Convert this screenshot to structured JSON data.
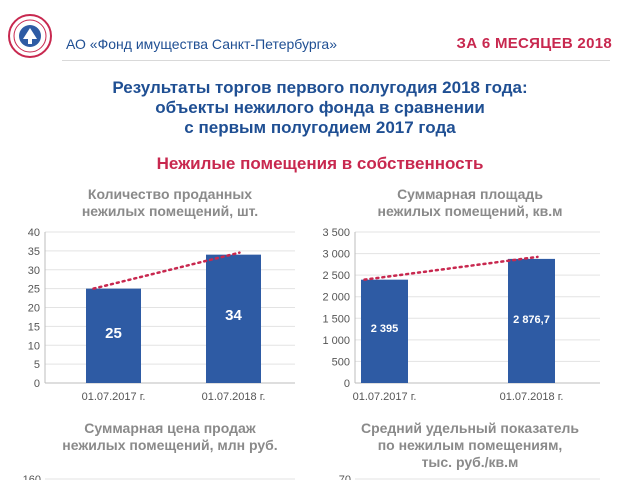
{
  "header": {
    "org_name": "АО «Фонд имущества Санкт-Петербурга»",
    "period": "ЗА 6 МЕСЯЦЕВ 2018"
  },
  "title_lines": [
    "Результаты торгов первого полугодия 2018 года:",
    "объекты нежилого фонда в сравнении",
    "с первым полугодием 2017 года"
  ],
  "subtitle": "Нежилые помещения в собственность",
  "colors": {
    "bar": "#2e5ba4",
    "trend": "#c8284f",
    "title_blue": "#1f4f93",
    "accent": "#c8284f"
  },
  "chart_data": [
    {
      "type": "bar",
      "title_lines": [
        "Количество проданных",
        "нежилых помещений, шт."
      ],
      "categories": [
        "01.07.2017 г.",
        "01.07.2018 г."
      ],
      "values": [
        25,
        34
      ],
      "value_labels": [
        "25",
        "34"
      ],
      "yticks": [
        "0",
        "5",
        "10",
        "15",
        "20",
        "25",
        "30",
        "35",
        "40"
      ],
      "ylim": [
        0,
        40
      ],
      "trendline": true
    },
    {
      "type": "bar",
      "title_lines": [
        "Суммарная площадь",
        "нежилых помещений, кв.м"
      ],
      "categories": [
        "01.07.2017 г.",
        "01.07.2018 г."
      ],
      "values": [
        2395,
        2876.7
      ],
      "value_labels": [
        "2 395",
        "2 876,7"
      ],
      "yticks": [
        "0",
        "500",
        "1 000",
        "1 500",
        "2 000",
        "2 500",
        "3 000",
        "3 500"
      ],
      "ylim": [
        0,
        3500
      ],
      "trendline": true
    },
    {
      "type": "bar",
      "title_lines": [
        "Суммарная цена продаж",
        "нежилых помещений, млн руб."
      ],
      "categories": [],
      "values": [],
      "yticks": [
        "160"
      ],
      "ylim": [
        0,
        160
      ]
    },
    {
      "type": "bar",
      "title_lines": [
        "Средний удельный показатель",
        "по нежилым помещениям,",
        "тыс. руб./кв.м"
      ],
      "categories": [],
      "values": [],
      "yticks": [
        "70"
      ],
      "ylim": [
        0,
        70
      ]
    }
  ]
}
